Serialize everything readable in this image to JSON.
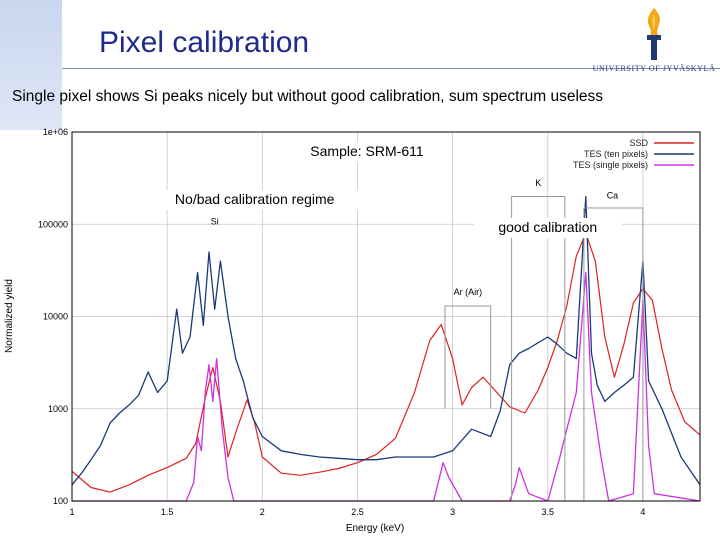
{
  "slide": {
    "title": "Pixel calibration",
    "subtitle": "Single pixel shows Si peaks nicely but without good calibration, sum spectrum useless",
    "logo_text": "UNIVERSITY OF JYVÄSKYLÄ"
  },
  "colors": {
    "title": "#1e2a8c",
    "ssd": "#dd2222",
    "tes_ten": "#1a3a7a",
    "tes_single": "#cc33dd"
  },
  "chart_data": {
    "type": "line",
    "xlabel": "Energy (keV)",
    "ylabel": "Normalized yield",
    "xlim": [
      1.0,
      4.3
    ],
    "ylim": [
      100,
      1000000
    ],
    "yscale": "log",
    "x_ticks": [
      "1",
      "1.5",
      "2",
      "2.5",
      "3",
      "3.5",
      "4"
    ],
    "y_ticks": [
      "100",
      "1000",
      "10000",
      "100000",
      "1e+06"
    ],
    "legend_position": "top-right",
    "series": [
      {
        "name": "SSD",
        "color": "#dd2222",
        "points": [
          [
            1.0,
            210
          ],
          [
            1.1,
            140
          ],
          [
            1.2,
            125
          ],
          [
            1.3,
            150
          ],
          [
            1.4,
            190
          ],
          [
            1.5,
            230
          ],
          [
            1.6,
            290
          ],
          [
            1.65,
            420
          ],
          [
            1.7,
            1300
          ],
          [
            1.74,
            2800
          ],
          [
            1.78,
            1200
          ],
          [
            1.82,
            300
          ],
          [
            1.86,
            550
          ],
          [
            1.92,
            1250
          ],
          [
            1.96,
            700
          ],
          [
            2.0,
            300
          ],
          [
            2.1,
            200
          ],
          [
            2.2,
            190
          ],
          [
            2.3,
            205
          ],
          [
            2.4,
            225
          ],
          [
            2.5,
            260
          ],
          [
            2.6,
            320
          ],
          [
            2.7,
            480
          ],
          [
            2.8,
            1500
          ],
          [
            2.88,
            5500
          ],
          [
            2.94,
            8200
          ],
          [
            3.0,
            3500
          ],
          [
            3.05,
            1100
          ],
          [
            3.1,
            1700
          ],
          [
            3.16,
            2200
          ],
          [
            3.22,
            1600
          ],
          [
            3.3,
            1050
          ],
          [
            3.38,
            900
          ],
          [
            3.45,
            1600
          ],
          [
            3.5,
            2800
          ],
          [
            3.55,
            5500
          ],
          [
            3.6,
            13000
          ],
          [
            3.65,
            45000
          ],
          [
            3.7,
            80000
          ],
          [
            3.75,
            40000
          ],
          [
            3.8,
            6000
          ],
          [
            3.85,
            2200
          ],
          [
            3.9,
            5000
          ],
          [
            3.95,
            14000
          ],
          [
            4.0,
            20000
          ],
          [
            4.05,
            15000
          ],
          [
            4.1,
            4500
          ],
          [
            4.15,
            1600
          ],
          [
            4.22,
            720
          ],
          [
            4.3,
            520
          ]
        ]
      },
      {
        "name": "TES (ten pixels)",
        "color": "#1a3a7a",
        "points": [
          [
            1.0,
            150
          ],
          [
            1.05,
            200
          ],
          [
            1.1,
            280
          ],
          [
            1.15,
            400
          ],
          [
            1.2,
            700
          ],
          [
            1.25,
            900
          ],
          [
            1.3,
            1100
          ],
          [
            1.35,
            1400
          ],
          [
            1.4,
            2500
          ],
          [
            1.45,
            1500
          ],
          [
            1.5,
            2000
          ],
          [
            1.55,
            12000
          ],
          [
            1.58,
            4000
          ],
          [
            1.62,
            6000
          ],
          [
            1.66,
            30000
          ],
          [
            1.69,
            8000
          ],
          [
            1.72,
            50000
          ],
          [
            1.75,
            12000
          ],
          [
            1.78,
            40000
          ],
          [
            1.82,
            10000
          ],
          [
            1.86,
            3500
          ],
          [
            1.9,
            2000
          ],
          [
            1.95,
            800
          ],
          [
            2.0,
            500
          ],
          [
            2.1,
            350
          ],
          [
            2.2,
            320
          ],
          [
            2.3,
            300
          ],
          [
            2.4,
            290
          ],
          [
            2.5,
            280
          ],
          [
            2.6,
            280
          ],
          [
            2.7,
            300
          ],
          [
            2.8,
            300
          ],
          [
            2.9,
            300
          ],
          [
            3.0,
            350
          ],
          [
            3.1,
            600
          ],
          [
            3.2,
            500
          ],
          [
            3.25,
            950
          ],
          [
            3.3,
            3000
          ],
          [
            3.35,
            4000
          ],
          [
            3.4,
            4500
          ],
          [
            3.45,
            5200
          ],
          [
            3.5,
            6000
          ],
          [
            3.55,
            5000
          ],
          [
            3.6,
            4000
          ],
          [
            3.65,
            3500
          ],
          [
            3.7,
            200000
          ],
          [
            3.73,
            4000
          ],
          [
            3.76,
            1800
          ],
          [
            3.8,
            1200
          ],
          [
            3.85,
            1500
          ],
          [
            3.9,
            1800
          ],
          [
            3.95,
            2200
          ],
          [
            4.0,
            40000
          ],
          [
            4.03,
            2000
          ],
          [
            4.1,
            1000
          ],
          [
            4.2,
            300
          ],
          [
            4.3,
            150
          ]
        ]
      },
      {
        "name": "TES (single pixels)",
        "color": "#cc33dd",
        "points": [
          [
            1.0,
            100
          ],
          [
            1.6,
            100
          ],
          [
            1.64,
            160
          ],
          [
            1.66,
            500
          ],
          [
            1.68,
            350
          ],
          [
            1.7,
            1500
          ],
          [
            1.72,
            3000
          ],
          [
            1.74,
            1200
          ],
          [
            1.76,
            3500
          ],
          [
            1.79,
            600
          ],
          [
            1.82,
            180
          ],
          [
            1.85,
            100
          ],
          [
            2.9,
            100
          ],
          [
            2.95,
            260
          ],
          [
            2.98,
            180
          ],
          [
            3.05,
            100
          ],
          [
            3.3,
            100
          ],
          [
            3.33,
            150
          ],
          [
            3.35,
            230
          ],
          [
            3.4,
            120
          ],
          [
            3.5,
            100
          ],
          [
            3.56,
            280
          ],
          [
            3.6,
            600
          ],
          [
            3.65,
            1500
          ],
          [
            3.7,
            30000
          ],
          [
            3.73,
            1500
          ],
          [
            3.78,
            300
          ],
          [
            3.82,
            100
          ],
          [
            3.95,
            120
          ],
          [
            4.0,
            15000
          ],
          [
            4.03,
            400
          ],
          [
            4.06,
            120
          ],
          [
            4.3,
            100
          ]
        ]
      }
    ],
    "annotations": {
      "sample": "Sample: SRM-611",
      "no_bad_regime": "No/bad calibration regime",
      "good_regime": "good calibration",
      "si": "Si",
      "ar": "Ar (Air)",
      "k": "K",
      "ca": "Ca"
    }
  }
}
